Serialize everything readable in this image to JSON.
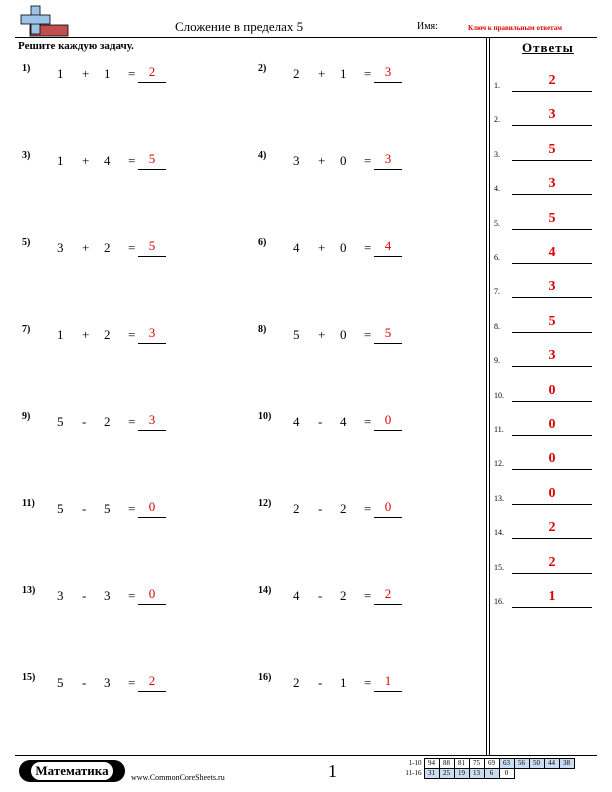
{
  "header": {
    "title": "Сложение в пределах 5",
    "name_label": "Имя:",
    "answer_key_label": "Ключ к правильным ответам"
  },
  "instructions": "Решите каждую задачу.",
  "problems": [
    {
      "num": "1)",
      "a": "1",
      "op": "+",
      "b": "1",
      "eq": "=",
      "answer": "2"
    },
    {
      "num": "2)",
      "a": "2",
      "op": "+",
      "b": "1",
      "eq": "=",
      "answer": "3"
    },
    {
      "num": "3)",
      "a": "1",
      "op": "+",
      "b": "4",
      "eq": "=",
      "answer": "5"
    },
    {
      "num": "4)",
      "a": "3",
      "op": "+",
      "b": "0",
      "eq": "=",
      "answer": "3"
    },
    {
      "num": "5)",
      "a": "3",
      "op": "+",
      "b": "2",
      "eq": "=",
      "answer": "5"
    },
    {
      "num": "6)",
      "a": "4",
      "op": "+",
      "b": "0",
      "eq": "=",
      "answer": "4"
    },
    {
      "num": "7)",
      "a": "1",
      "op": "+",
      "b": "2",
      "eq": "=",
      "answer": "3"
    },
    {
      "num": "8)",
      "a": "5",
      "op": "+",
      "b": "0",
      "eq": "=",
      "answer": "5"
    },
    {
      "num": "9)",
      "a": "5",
      "op": "-",
      "b": "2",
      "eq": "=",
      "answer": "3"
    },
    {
      "num": "10)",
      "a": "4",
      "op": "-",
      "b": "4",
      "eq": "=",
      "answer": "0"
    },
    {
      "num": "11)",
      "a": "5",
      "op": "-",
      "b": "5",
      "eq": "=",
      "answer": "0"
    },
    {
      "num": "12)",
      "a": "2",
      "op": "-",
      "b": "2",
      "eq": "=",
      "answer": "0"
    },
    {
      "num": "13)",
      "a": "3",
      "op": "-",
      "b": "3",
      "eq": "=",
      "answer": "0"
    },
    {
      "num": "14)",
      "a": "4",
      "op": "-",
      "b": "2",
      "eq": "=",
      "answer": "2"
    },
    {
      "num": "15)",
      "a": "5",
      "op": "-",
      "b": "3",
      "eq": "=",
      "answer": "2"
    },
    {
      "num": "16)",
      "a": "2",
      "op": "-",
      "b": "1",
      "eq": "=",
      "answer": "1"
    }
  ],
  "answer_key": {
    "title": "Ответы",
    "items": [
      {
        "num": "1.",
        "value": "2"
      },
      {
        "num": "2.",
        "value": "3"
      },
      {
        "num": "3.",
        "value": "5"
      },
      {
        "num": "4.",
        "value": "3"
      },
      {
        "num": "5.",
        "value": "5"
      },
      {
        "num": "6.",
        "value": "4"
      },
      {
        "num": "7.",
        "value": "3"
      },
      {
        "num": "8.",
        "value": "5"
      },
      {
        "num": "9.",
        "value": "3"
      },
      {
        "num": "10.",
        "value": "0"
      },
      {
        "num": "11.",
        "value": "0"
      },
      {
        "num": "12.",
        "value": "0"
      },
      {
        "num": "13.",
        "value": "0"
      },
      {
        "num": "14.",
        "value": "2"
      },
      {
        "num": "15.",
        "value": "2"
      },
      {
        "num": "16.",
        "value": "1"
      }
    ]
  },
  "footer": {
    "subject": "Математика",
    "site": "www.CommonCoreSheets.ru",
    "page": "1",
    "score_rows": [
      {
        "label": "1-10",
        "cells": [
          "94",
          "88",
          "81",
          "75",
          "69",
          "63",
          "56",
          "50",
          "44",
          "38"
        ]
      },
      {
        "label": "11-16",
        "cells": [
          "31",
          "25",
          "19",
          "13",
          "6",
          "0"
        ]
      }
    ]
  }
}
